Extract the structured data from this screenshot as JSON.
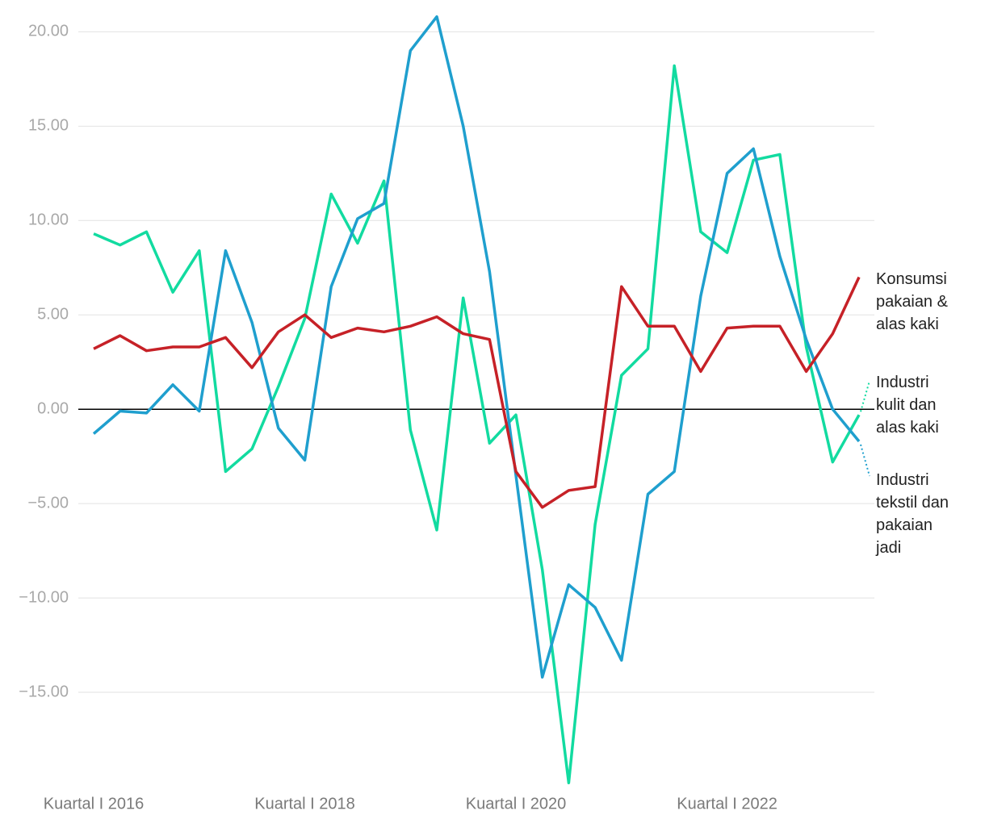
{
  "chart_data": {
    "type": "line",
    "categories": [
      "Kuartal I 2016",
      null,
      null,
      null,
      null,
      null,
      null,
      null,
      "Kuartal I 2018",
      null,
      null,
      null,
      null,
      null,
      null,
      null,
      "Kuartal I 2020",
      null,
      null,
      null,
      null,
      null,
      null,
      null,
      "Kuartal I 2022",
      null,
      null,
      null,
      null,
      null
    ],
    "series": [
      {
        "name": "Konsumsi pakaian & alas kaki",
        "color": "#c62127",
        "values": [
          3.2,
          3.9,
          3.1,
          3.3,
          3.3,
          3.8,
          2.2,
          4.1,
          5.0,
          3.8,
          4.3,
          4.1,
          4.4,
          4.9,
          4.0,
          3.7,
          -3.3,
          -5.2,
          -4.3,
          -4.1,
          6.5,
          4.4,
          4.4,
          2.0,
          4.3,
          4.4,
          4.4,
          2.0,
          4.0,
          7.0
        ]
      },
      {
        "name": "Industri kulit dan alas kaki",
        "color": "#12dba0",
        "values": [
          9.3,
          8.7,
          9.4,
          6.2,
          8.4,
          -3.3,
          -2.1,
          1.2,
          4.8,
          11.4,
          8.8,
          12.1,
          -1.1,
          -6.4,
          5.9,
          -1.8,
          -0.3,
          -8.5,
          -19.8,
          -6.1,
          1.8,
          3.2,
          18.2,
          9.4,
          8.3,
          13.2,
          13.5,
          3.3,
          -2.8,
          -0.3
        ]
      },
      {
        "name": "Industri tekstil dan pakaian jadi",
        "color": "#1f9fce",
        "values": [
          -1.3,
          -0.1,
          -0.2,
          1.3,
          -0.1,
          8.4,
          4.6,
          -1.0,
          -2.7,
          6.5,
          10.1,
          10.9,
          19.0,
          20.8,
          15.0,
          7.3,
          -3.5,
          -14.2,
          -9.3,
          -10.5,
          -13.3,
          -4.5,
          -3.3,
          6.0,
          12.5,
          13.8,
          8.1,
          3.7,
          0.0,
          -1.7
        ]
      }
    ],
    "ylim": [
      -20,
      21
    ],
    "yticks": [
      {
        "value": 20,
        "label": "20.00"
      },
      {
        "value": 15,
        "label": "15.00"
      },
      {
        "value": 10,
        "label": "10.00"
      },
      {
        "value": 5,
        "label": "5.00"
      },
      {
        "value": 0,
        "label": "0.00"
      },
      {
        "value": -5,
        "label": "−5.00"
      },
      {
        "value": -10,
        "label": "−10.00"
      },
      {
        "value": -15,
        "label": "−15.00"
      }
    ],
    "grid": true
  }
}
